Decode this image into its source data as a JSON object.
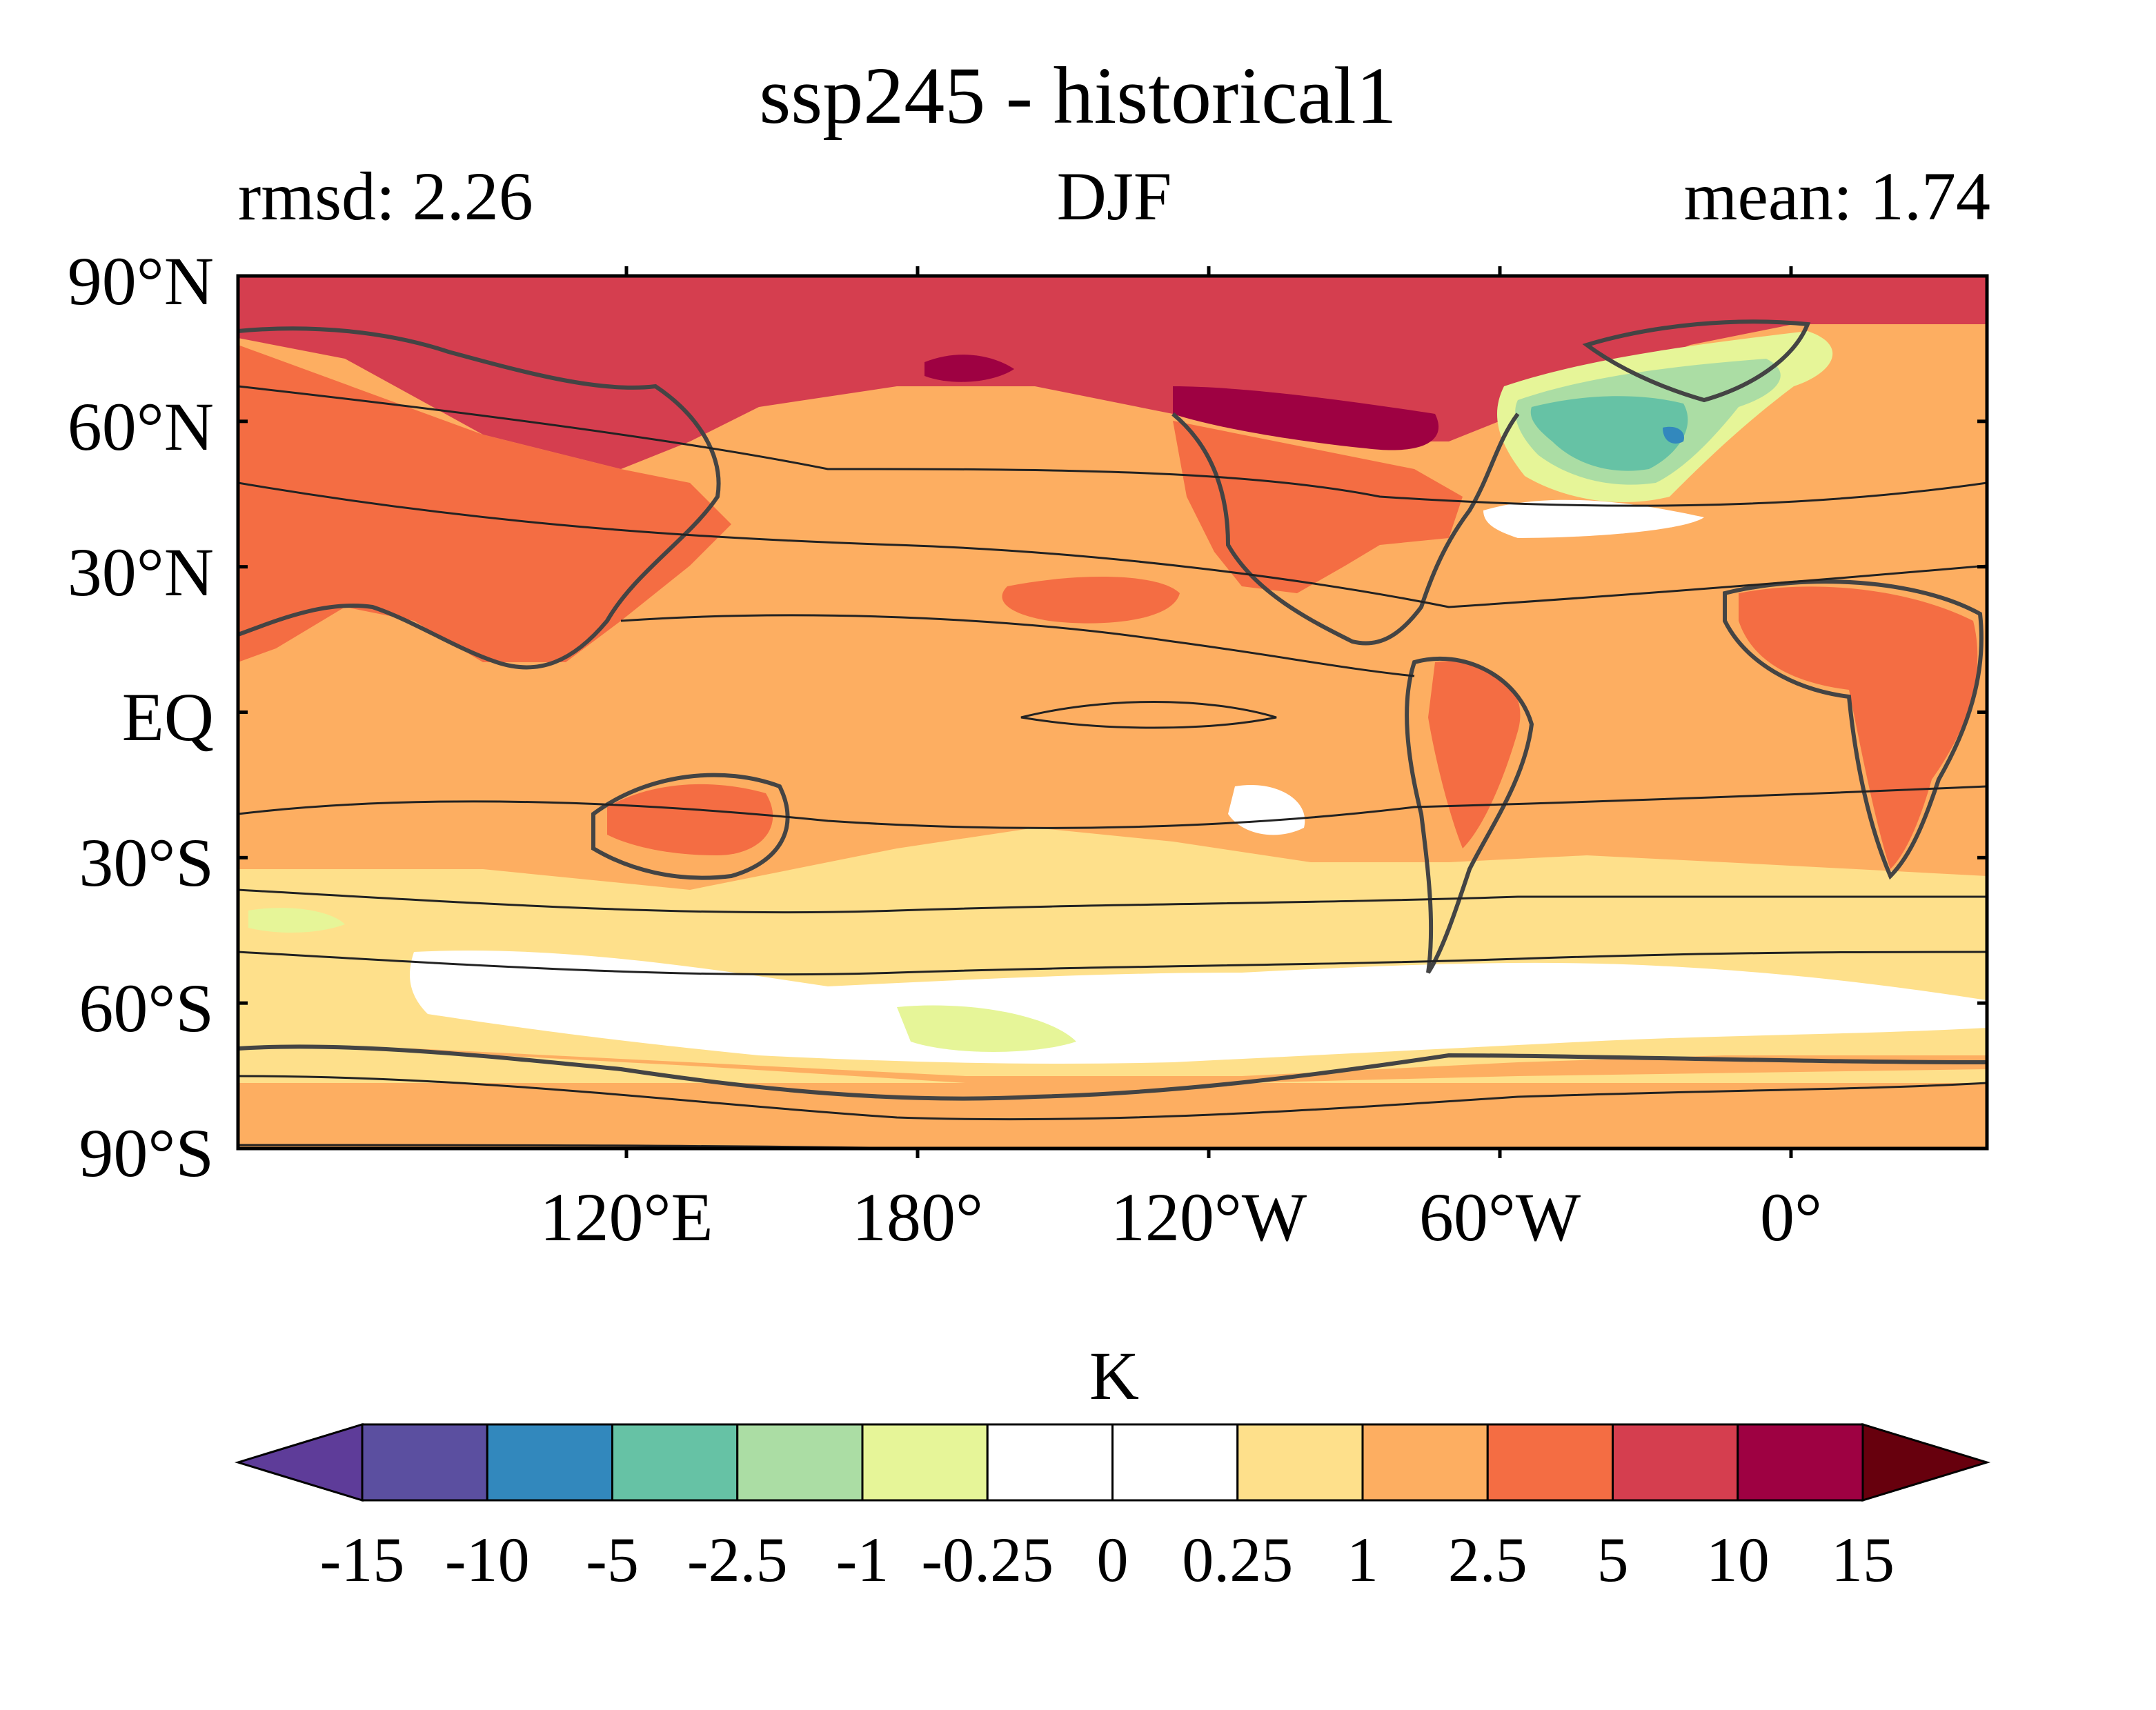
{
  "title": "ssp245 - historical1",
  "left_label": "rmsd: 2.26",
  "center_label": "DJF",
  "right_label": "mean: 1.74",
  "latitude_labels": [
    "90°N",
    "60°N",
    "30°N",
    "EQ",
    "30°S",
    "60°S",
    "90°S"
  ],
  "longitude_labels": [
    "120°E",
    "180°",
    "120°W",
    "60°W",
    "0°"
  ],
  "colorbar": {
    "unit": "K",
    "tick_labels": [
      "-15",
      "-10",
      "-5",
      "-2.5",
      "-1",
      "-0.25",
      "0",
      "0.25",
      "1",
      "2.5",
      "5",
      "10",
      "15"
    ],
    "colors": [
      "#5e3c99",
      "#5b4fa0",
      "#3288bd",
      "#66c2a5",
      "#abdda4",
      "#e6f598",
      "#ffffff",
      "#ffffff",
      "#fee08b",
      "#fdae61",
      "#f46d43",
      "#d53e4f",
      "#9e0142",
      "#67000d"
    ]
  },
  "map": {
    "background_color": "#fdae61",
    "field_colors": {
      "arctic": "#d53e4f",
      "strong_warming": "#9e0142",
      "land_warming": "#f46d43",
      "southern_ocean": "#fee08b",
      "near_zero": "#ffffff",
      "slight_cooling": "#e6f598",
      "cooling": "#abdda4",
      "strong_cooling": "#66c2a5",
      "deep_cooling": "#3288bd"
    },
    "contour_color": "#222222",
    "coastline_color": "#444444"
  }
}
